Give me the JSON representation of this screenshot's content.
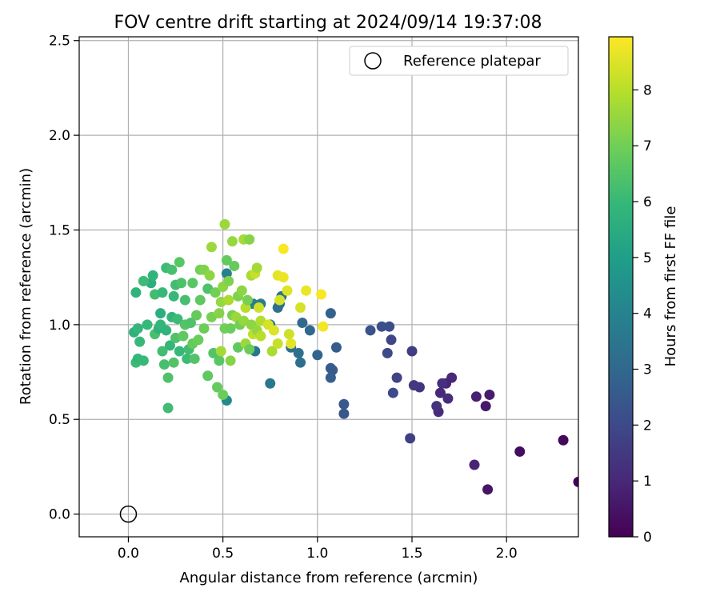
{
  "chart_data": {
    "type": "scatter",
    "title": "FOV centre drift starting at 2024/09/14 19:37:08",
    "xlabel": "Angular distance from reference (arcmin)",
    "ylabel": "Rotation from reference (arcmin)",
    "xlim": [
      -0.26,
      2.38
    ],
    "ylim": [
      -0.12,
      2.52
    ],
    "xticks": [
      0.0,
      0.5,
      1.0,
      1.5,
      2.0
    ],
    "xtick_labels": [
      "0.0",
      "0.5",
      "1.0",
      "1.5",
      "2.0"
    ],
    "yticks": [
      0.0,
      0.5,
      1.0,
      1.5,
      2.0,
      2.5
    ],
    "ytick_labels": [
      "0.0",
      "0.5",
      "1.0",
      "1.5",
      "2.0",
      "2.5"
    ],
    "grid": true,
    "legend": {
      "position": "top-right",
      "entries": [
        {
          "label": "Reference platepar",
          "marker": "open-circle",
          "x": 0.0,
          "y": 0.0
        }
      ]
    },
    "colorbar": {
      "label": "Hours from first FF file",
      "range": [
        0,
        8.95
      ],
      "ticks": [
        0,
        1,
        2,
        3,
        4,
        5,
        6,
        7,
        8
      ],
      "tick_labels": [
        "0",
        "1",
        "2",
        "3",
        "4",
        "5",
        "6",
        "7",
        "8"
      ],
      "colormap": "viridis",
      "colormap_stops": [
        "#440154",
        "#482878",
        "#3e4989",
        "#31688e",
        "#26828e",
        "#1f9e89",
        "#35b779",
        "#6ece58",
        "#b5de2b",
        "#fde725"
      ]
    },
    "series": [
      {
        "points": [
          [
            2.38,
            0.17,
            0.05
          ],
          [
            2.3,
            0.39,
            0.2
          ],
          [
            2.07,
            0.33,
            0.3
          ],
          [
            1.9,
            0.13,
            0.5
          ],
          [
            1.91,
            0.63,
            0.7
          ],
          [
            1.89,
            0.57,
            0.6
          ],
          [
            1.84,
            0.62,
            0.8
          ],
          [
            1.83,
            0.26,
            0.9
          ],
          [
            1.71,
            0.72,
            1.0
          ],
          [
            1.69,
            0.61,
            1.1
          ],
          [
            1.68,
            0.69,
            0.9
          ],
          [
            1.66,
            0.69,
            1.2
          ],
          [
            1.65,
            0.64,
            1.0
          ],
          [
            1.64,
            0.54,
            1.1
          ],
          [
            1.63,
            0.57,
            1.3
          ],
          [
            1.54,
            0.67,
            1.4
          ],
          [
            1.51,
            0.68,
            1.5
          ],
          [
            1.5,
            0.86,
            1.6
          ],
          [
            1.49,
            0.4,
            1.7
          ],
          [
            1.42,
            0.72,
            1.8
          ],
          [
            1.4,
            0.64,
            2.0
          ],
          [
            1.39,
            0.92,
            1.9
          ],
          [
            1.38,
            0.99,
            2.1
          ],
          [
            1.37,
            0.85,
            2.0
          ],
          [
            1.34,
            0.99,
            2.2
          ],
          [
            1.28,
            0.97,
            2.3
          ],
          [
            1.14,
            0.53,
            2.4
          ],
          [
            1.14,
            0.58,
            2.5
          ],
          [
            1.1,
            0.88,
            2.6
          ],
          [
            1.08,
            0.76,
            2.5
          ],
          [
            1.07,
            0.72,
            2.7
          ],
          [
            1.07,
            0.77,
            2.6
          ],
          [
            1.07,
            1.06,
            2.8
          ],
          [
            1.0,
            0.84,
            2.9
          ],
          [
            0.96,
            0.97,
            3.0
          ],
          [
            0.92,
            1.01,
            3.1
          ],
          [
            0.91,
            0.8,
            3.2
          ],
          [
            0.9,
            0.85,
            3.3
          ],
          [
            0.86,
            0.88,
            3.2
          ],
          [
            0.81,
            1.15,
            3.4
          ],
          [
            0.8,
            1.11,
            3.5
          ],
          [
            0.79,
            1.09,
            3.3
          ],
          [
            0.75,
            0.69,
            3.6
          ],
          [
            0.75,
            1.0,
            3.4
          ],
          [
            0.7,
            1.11,
            3.7
          ],
          [
            0.67,
            0.86,
            3.5
          ],
          [
            0.66,
            1.11,
            3.8
          ],
          [
            0.52,
            1.27,
            3.9
          ],
          [
            0.52,
            0.6,
            4.2
          ],
          [
            0.12,
            1.22,
            5.6
          ],
          [
            0.04,
            1.17,
            5.8
          ],
          [
            0.03,
            0.96,
            5.7
          ],
          [
            0.05,
            0.98,
            5.9
          ],
          [
            0.06,
            0.91,
            6.0
          ],
          [
            0.04,
            0.8,
            6.1
          ],
          [
            0.05,
            0.82,
            5.9
          ],
          [
            0.08,
            1.23,
            6.1
          ],
          [
            0.08,
            0.81,
            6.0
          ],
          [
            0.1,
            1.0,
            6.0
          ],
          [
            0.13,
            1.26,
            5.8
          ],
          [
            0.14,
            1.16,
            6.2
          ],
          [
            0.14,
            0.95,
            6.3
          ],
          [
            0.16,
            0.98,
            5.7
          ],
          [
            0.17,
            1.0,
            5.9
          ],
          [
            0.17,
            1.06,
            5.6
          ],
          [
            0.18,
            0.86,
            6.2
          ],
          [
            0.18,
            1.17,
            6.0
          ],
          [
            0.19,
            0.79,
            6.3
          ],
          [
            0.2,
            1.3,
            6.1
          ],
          [
            0.2,
            0.97,
            5.8
          ],
          [
            0.21,
            0.72,
            6.4
          ],
          [
            0.21,
            0.56,
            6.2
          ],
          [
            0.22,
            0.89,
            5.9
          ],
          [
            0.23,
            1.29,
            6.3
          ],
          [
            0.23,
            1.04,
            5.8
          ],
          [
            0.24,
            0.8,
            6.5
          ],
          [
            0.24,
            1.15,
            6.0
          ],
          [
            0.25,
            0.93,
            6.4
          ],
          [
            0.25,
            1.21,
            6.2
          ],
          [
            0.26,
            1.03,
            6.1
          ],
          [
            0.27,
            1.33,
            6.6
          ],
          [
            0.27,
            0.86,
            6.0
          ],
          [
            0.28,
            1.22,
            6.4
          ],
          [
            0.29,
            0.94,
            6.7
          ],
          [
            0.3,
            1.0,
            6.5
          ],
          [
            0.3,
            1.13,
            6.3
          ],
          [
            0.31,
            0.82,
            6.1
          ],
          [
            0.32,
            0.87,
            6.2
          ],
          [
            0.33,
            1.01,
            6.4
          ],
          [
            0.34,
            1.22,
            6.6
          ],
          [
            0.34,
            0.9,
            6.8
          ],
          [
            0.35,
            0.82,
            6.5
          ],
          [
            0.36,
            1.05,
            6.8
          ],
          [
            0.37,
            0.92,
            6.9
          ],
          [
            0.38,
            1.29,
            7.0
          ],
          [
            0.38,
            1.13,
            6.7
          ],
          [
            0.4,
            1.29,
            7.2
          ],
          [
            0.4,
            0.98,
            6.9
          ],
          [
            0.42,
            1.19,
            6.4
          ],
          [
            0.42,
            0.73,
            6.7
          ],
          [
            0.43,
            1.26,
            7.4
          ],
          [
            0.44,
            1.41,
            7.6
          ],
          [
            0.44,
            1.04,
            7.1
          ],
          [
            0.45,
            0.85,
            6.5
          ],
          [
            0.46,
            1.17,
            7.0
          ],
          [
            0.47,
            0.67,
            6.8
          ],
          [
            0.48,
            1.06,
            7.3
          ],
          [
            0.48,
            0.81,
            6.6
          ],
          [
            0.49,
            0.86,
            7.7
          ],
          [
            0.49,
            1.12,
            7.5
          ],
          [
            0.5,
            0.63,
            6.9
          ],
          [
            0.5,
            1.2,
            7.4
          ],
          [
            0.51,
            1.53,
            7.6
          ],
          [
            0.51,
            0.98,
            7.0
          ],
          [
            0.52,
            1.34,
            6.8
          ],
          [
            0.53,
            1.23,
            7.2
          ],
          [
            0.53,
            1.13,
            7.8
          ],
          [
            0.54,
            0.98,
            6.9
          ],
          [
            0.54,
            0.81,
            7.3
          ],
          [
            0.55,
            1.44,
            7.5
          ],
          [
            0.55,
            1.05,
            7.1
          ],
          [
            0.56,
            1.31,
            6.8
          ],
          [
            0.57,
            1.04,
            7.6
          ],
          [
            0.58,
            1.15,
            7.2
          ],
          [
            0.58,
            0.88,
            6.7
          ],
          [
            0.59,
            1.0,
            7.0
          ],
          [
            0.6,
            1.18,
            7.4
          ],
          [
            0.61,
            1.45,
            7.7
          ],
          [
            0.61,
            1.02,
            7.5
          ],
          [
            0.62,
            1.09,
            8.0
          ],
          [
            0.62,
            0.9,
            7.6
          ],
          [
            0.63,
            1.13,
            7.1
          ],
          [
            0.64,
            0.87,
            6.9
          ],
          [
            0.64,
            1.45,
            7.3
          ],
          [
            0.65,
            1.26,
            7.8
          ],
          [
            0.65,
            1.0,
            7.4
          ],
          [
            0.66,
            0.95,
            8.1
          ],
          [
            0.67,
            1.27,
            8.2
          ],
          [
            0.68,
            1.3,
            7.7
          ],
          [
            0.68,
            0.97,
            7.5
          ],
          [
            0.69,
            1.09,
            8.3
          ],
          [
            0.7,
            0.94,
            8.0
          ],
          [
            0.7,
            1.02,
            7.9
          ],
          [
            0.74,
            1.0,
            8.4
          ],
          [
            0.76,
            0.86,
            7.8
          ],
          [
            0.77,
            0.97,
            8.5
          ],
          [
            0.79,
            1.26,
            8.6
          ],
          [
            0.79,
            0.9,
            8.2
          ],
          [
            0.8,
            1.13,
            8.4
          ],
          [
            0.82,
            1.4,
            8.9
          ],
          [
            0.82,
            1.25,
            8.7
          ],
          [
            0.84,
            1.18,
            8.5
          ],
          [
            0.85,
            0.95,
            8.3
          ],
          [
            0.86,
            0.9,
            8.6
          ],
          [
            0.91,
            1.09,
            8.4
          ],
          [
            0.94,
            1.18,
            8.7
          ],
          [
            1.02,
            1.16,
            8.9
          ],
          [
            1.03,
            0.99,
            8.8
          ]
        ]
      }
    ]
  }
}
